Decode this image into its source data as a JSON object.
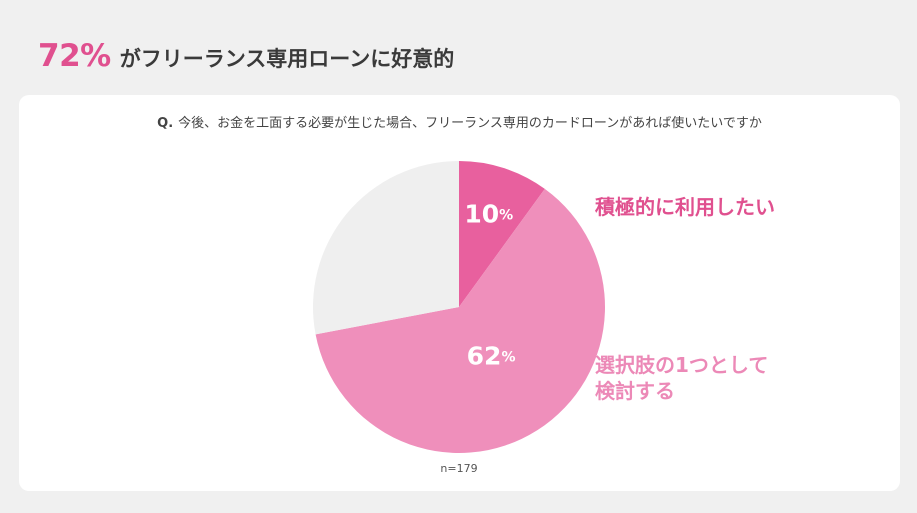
{
  "headline": {
    "percent": "72%",
    "text": "がフリーランス専用ローンに好意的"
  },
  "question": {
    "prefix": "Q.",
    "text": "今後、お金を工面する必要が生じた場合、フリーランス専用のカードローンがあれば使いたいですか"
  },
  "chart_data": {
    "type": "pie",
    "slices": [
      {
        "label": "積極的に利用したい",
        "value": 10,
        "display": "10",
        "color": "#e8609e"
      },
      {
        "label": "選択肢の1つとして\n検討する",
        "value": 62,
        "display": "62",
        "color": "#ef8fbb"
      },
      {
        "label": "",
        "value": 28,
        "display": "",
        "color": "#efefef"
      }
    ],
    "percent_suffix": "%",
    "start_angle_deg": 0,
    "direction": "clockwise"
  },
  "sample_size": "n=179"
}
